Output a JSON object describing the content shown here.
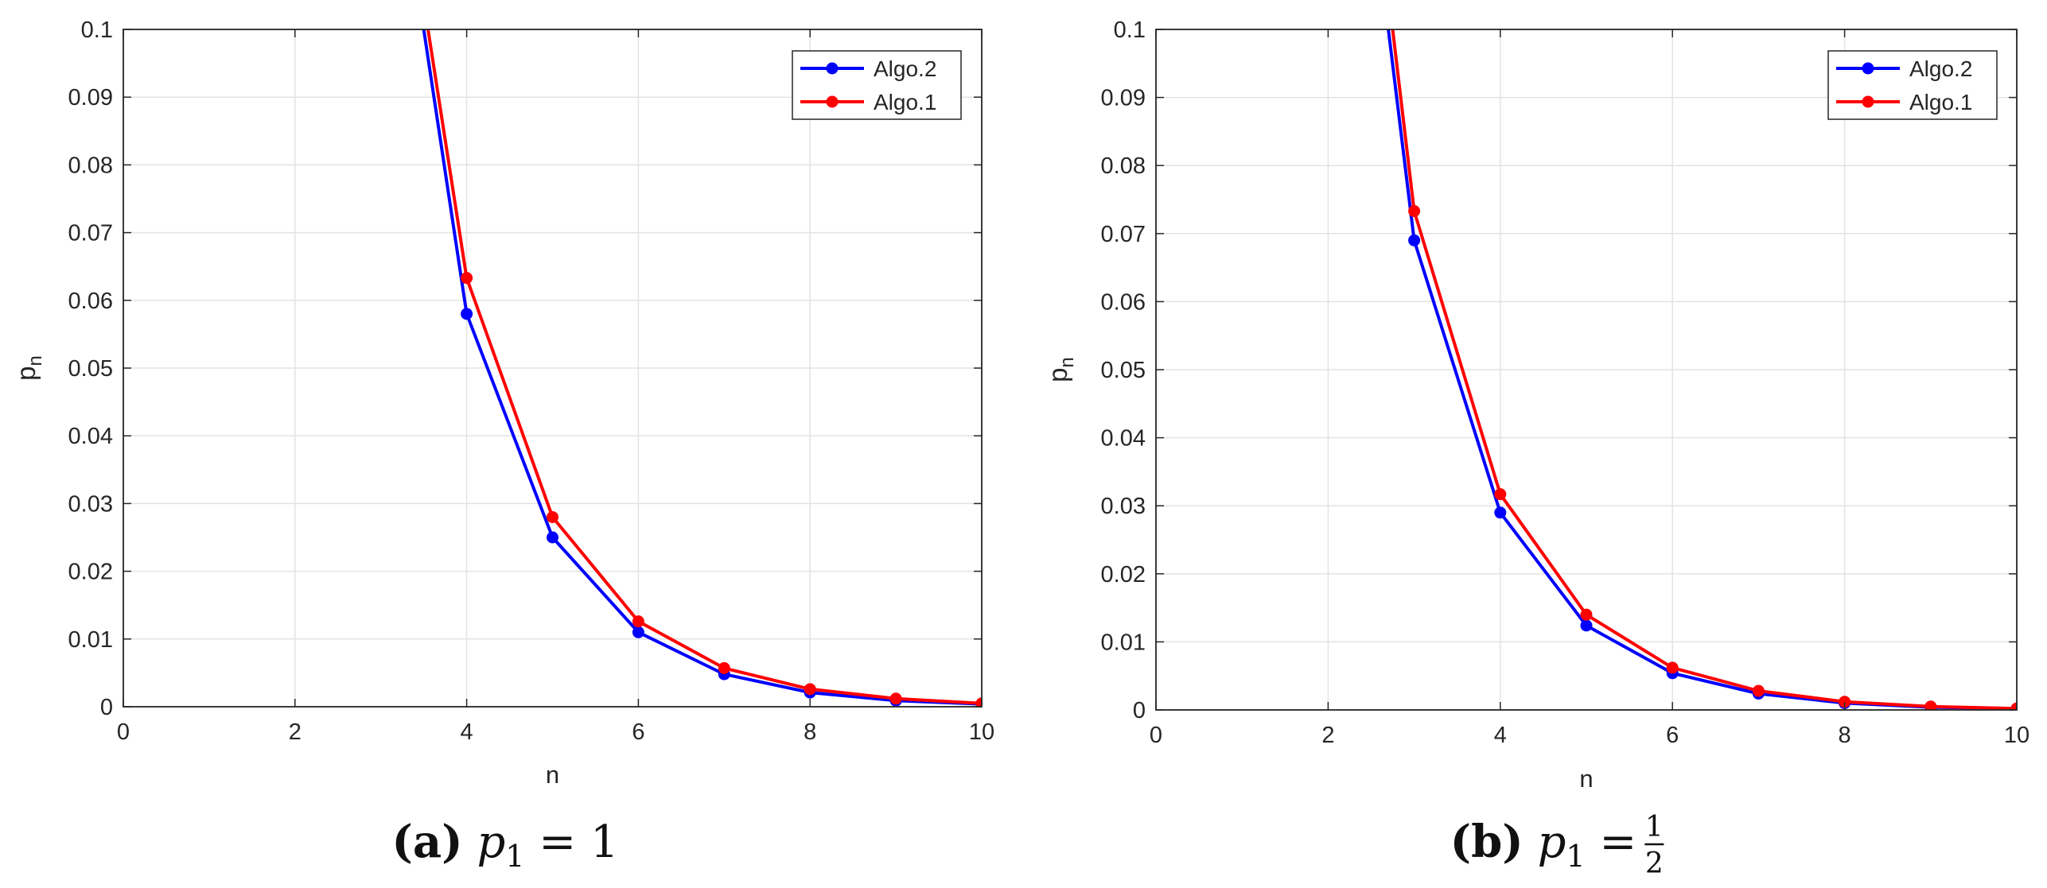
{
  "chart_data": [
    {
      "type": "line",
      "panel_label": "(a)",
      "caption_math": "p",
      "caption_sub": "1",
      "caption_rel": "= 1",
      "xlabel": "n",
      "ylabel": "p",
      "ylabel_sub": "n",
      "xlim": [
        0,
        10
      ],
      "ylim": [
        0,
        0.1
      ],
      "xticks": [
        0,
        2,
        4,
        6,
        8,
        10
      ],
      "xtick_labels": [
        "0",
        "2",
        "4",
        "6",
        "8",
        "10"
      ],
      "yticks": [
        0,
        0.01,
        0.02,
        0.03,
        0.04,
        0.05,
        0.06,
        0.07,
        0.08,
        0.09,
        0.1
      ],
      "ytick_labels": [
        "0",
        "0.01",
        "0.02",
        "0.03",
        "0.04",
        "0.05",
        "0.06",
        "0.07",
        "0.08",
        "0.09",
        "0.1"
      ],
      "grid": true,
      "legend_position": "top-right",
      "series": [
        {
          "name": "Algo.2",
          "color": "#0000ff",
          "x": [
            3.5,
            4,
            5,
            6,
            7,
            8,
            9,
            10
          ],
          "y": [
            0.1,
            0.058,
            0.025,
            0.011,
            0.0048,
            0.0021,
            0.0009,
            0.0004
          ],
          "markers": [
            false,
            true,
            true,
            true,
            true,
            true,
            true,
            true
          ]
        },
        {
          "name": "Algo.1",
          "color": "#ff0000",
          "x": [
            3.55,
            4,
            5,
            6,
            7,
            8,
            9,
            10
          ],
          "y": [
            0.1,
            0.0633,
            0.028,
            0.0126,
            0.0057,
            0.0026,
            0.0012,
            0.0005
          ],
          "markers": [
            false,
            true,
            true,
            true,
            true,
            true,
            true,
            true
          ]
        }
      ]
    },
    {
      "type": "line",
      "panel_label": "(b)",
      "caption_math": "p",
      "caption_sub": "1",
      "caption_rel": "=",
      "caption_frac_num": "1",
      "caption_frac_den": "2",
      "xlabel": "n",
      "ylabel": "p",
      "ylabel_sub": "n",
      "xlim": [
        0,
        10
      ],
      "ylim": [
        0,
        0.1
      ],
      "xticks": [
        0,
        2,
        4,
        6,
        8,
        10
      ],
      "xtick_labels": [
        "0",
        "2",
        "4",
        "6",
        "8",
        "10"
      ],
      "yticks": [
        0,
        0.01,
        0.02,
        0.03,
        0.04,
        0.05,
        0.06,
        0.07,
        0.08,
        0.09,
        0.1
      ],
      "ytick_labels": [
        "0",
        "0.01",
        "0.02",
        "0.03",
        "0.04",
        "0.05",
        "0.06",
        "0.07",
        "0.08",
        "0.09",
        "0.1"
      ],
      "grid": true,
      "legend_position": "top-right",
      "series": [
        {
          "name": "Algo.2",
          "color": "#0000ff",
          "x": [
            2.7,
            3,
            4,
            5,
            6,
            7,
            8,
            9,
            10
          ],
          "y": [
            0.1,
            0.069,
            0.029,
            0.0124,
            0.0054,
            0.0024,
            0.001,
            0.0004,
            0.0002
          ],
          "markers": [
            false,
            true,
            true,
            true,
            true,
            true,
            true,
            true,
            true
          ]
        },
        {
          "name": "Algo.1",
          "color": "#ff0000",
          "x": [
            2.75,
            3,
            4,
            5,
            6,
            7,
            8,
            9,
            10
          ],
          "y": [
            0.1,
            0.0733,
            0.0317,
            0.014,
            0.0062,
            0.0028,
            0.0012,
            0.0005,
            0.0002
          ],
          "markers": [
            false,
            true,
            true,
            true,
            true,
            true,
            true,
            true,
            true
          ]
        }
      ]
    }
  ]
}
